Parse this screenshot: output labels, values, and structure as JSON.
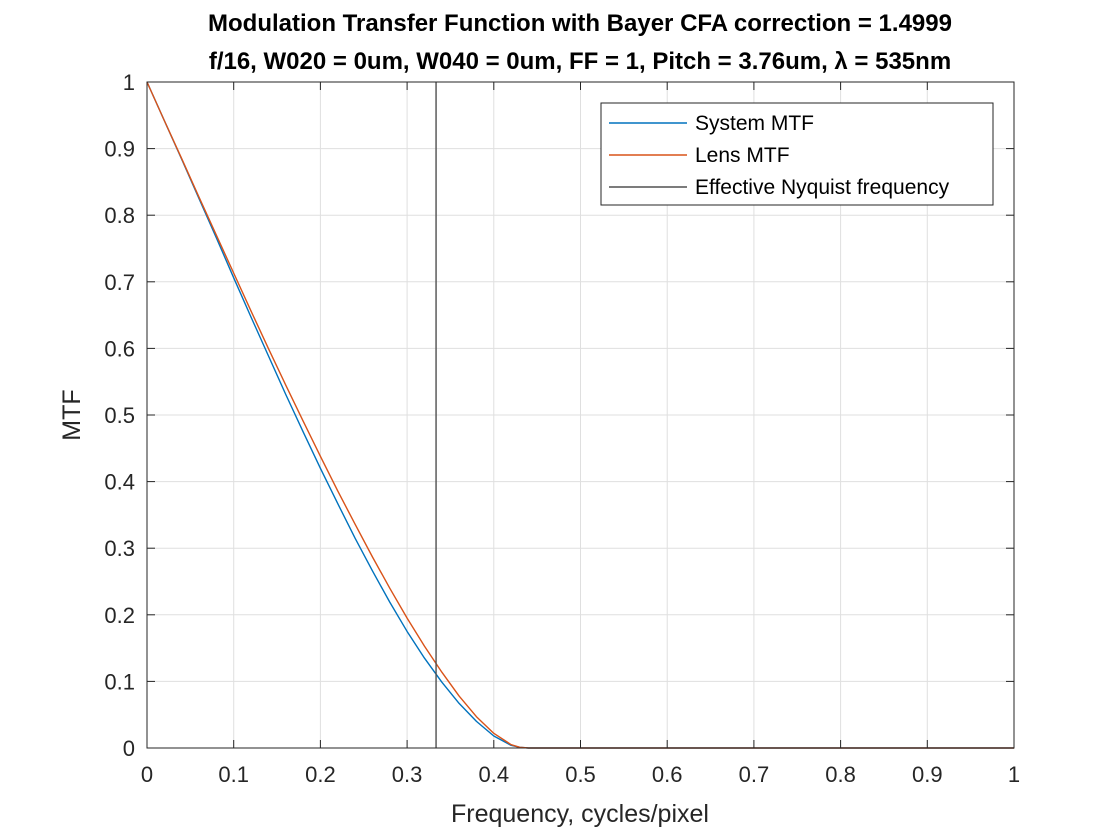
{
  "chart_data": {
    "type": "line",
    "title": "Modulation Transfer Function with Bayer CFA correction = 1.4999",
    "subtitle": "f/16, W020 = 0um, W040 = 0um, FF = 1, Pitch = 3.76um, λ = 535nm",
    "xlabel": "Frequency, cycles/pixel",
    "ylabel": "MTF",
    "xlim": [
      0,
      1
    ],
    "ylim": [
      0,
      1
    ],
    "xticks": [
      0,
      0.1,
      0.2,
      0.3,
      0.4,
      0.5,
      0.6,
      0.7,
      0.8,
      0.9,
      1
    ],
    "yticks": [
      0,
      0.1,
      0.2,
      0.3,
      0.4,
      0.5,
      0.6,
      0.7,
      0.8,
      0.9,
      1
    ],
    "xtick_labels": [
      "0",
      "0.1",
      "0.2",
      "0.3",
      "0.4",
      "0.5",
      "0.6",
      "0.7",
      "0.8",
      "0.9",
      "1"
    ],
    "ytick_labels": [
      "0",
      "0.1",
      "0.2",
      "0.3",
      "0.4",
      "0.5",
      "0.6",
      "0.7",
      "0.8",
      "0.9",
      "1"
    ],
    "grid": true,
    "legend_position": "top-right",
    "series": [
      {
        "name": "System MTF",
        "color": "#0072BD",
        "x": [
          0,
          0.02,
          0.04,
          0.06,
          0.08,
          0.1,
          0.12,
          0.14,
          0.16,
          0.18,
          0.2,
          0.22,
          0.24,
          0.26,
          0.28,
          0.3,
          0.32,
          0.34,
          0.36,
          0.38,
          0.4,
          0.42,
          0.43,
          0.44,
          0.45,
          0.5,
          0.6,
          0.7,
          0.8,
          0.9,
          1.0
        ],
        "y": [
          1,
          0.942,
          0.884,
          0.825,
          0.766,
          0.706,
          0.647,
          0.589,
          0.531,
          0.475,
          0.42,
          0.367,
          0.315,
          0.266,
          0.219,
          0.175,
          0.135,
          0.099,
          0.067,
          0.04,
          0.018,
          0.004,
          0.001,
          0,
          0,
          0,
          0,
          0,
          0,
          0,
          0
        ]
      },
      {
        "name": "Lens MTF",
        "color": "#D95319",
        "x": [
          0,
          0.02,
          0.04,
          0.06,
          0.08,
          0.1,
          0.12,
          0.14,
          0.16,
          0.18,
          0.2,
          0.22,
          0.24,
          0.26,
          0.28,
          0.3,
          0.32,
          0.34,
          0.36,
          0.38,
          0.4,
          0.42,
          0.43,
          0.44,
          0.45,
          0.5,
          0.6,
          0.7,
          0.8,
          0.9,
          1.0
        ],
        "y": [
          1,
          0.942,
          0.885,
          0.827,
          0.77,
          0.713,
          0.656,
          0.6,
          0.545,
          0.491,
          0.438,
          0.386,
          0.336,
          0.287,
          0.24,
          0.195,
          0.153,
          0.114,
          0.078,
          0.047,
          0.022,
          0.005,
          0.001,
          0,
          0,
          0,
          0,
          0,
          0,
          0,
          0
        ]
      },
      {
        "name": "Effective Nyquist frequency",
        "color": "#505050",
        "type": "vline",
        "x": [
          0.3334,
          0.3334
        ],
        "y": [
          0,
          1
        ]
      }
    ]
  }
}
